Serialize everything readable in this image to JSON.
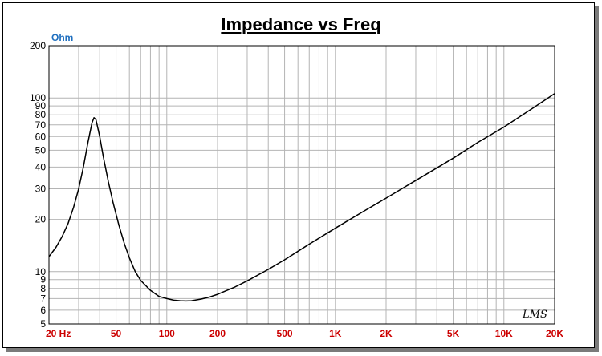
{
  "chart_data": {
    "type": "line",
    "title": "Impedance vs Freq",
    "ylabel": "Ohm",
    "xlabel": "",
    "xscale": "log",
    "yscale": "log",
    "xlim": [
      20,
      20000
    ],
    "ylim": [
      5,
      200
    ],
    "grid": true,
    "x_ticks": [
      {
        "value": 20,
        "label": "20  Hz"
      },
      {
        "value": 50,
        "label": "50"
      },
      {
        "value": 100,
        "label": "100"
      },
      {
        "value": 200,
        "label": "200"
      },
      {
        "value": 500,
        "label": "500"
      },
      {
        "value": 1000,
        "label": "1K"
      },
      {
        "value": 2000,
        "label": "2K"
      },
      {
        "value": 5000,
        "label": "5K"
      },
      {
        "value": 10000,
        "label": "10K"
      },
      {
        "value": 20000,
        "label": "20K"
      }
    ],
    "y_ticks": [
      {
        "value": 5,
        "label": "5"
      },
      {
        "value": 6,
        "label": "6"
      },
      {
        "value": 7,
        "label": "7"
      },
      {
        "value": 8,
        "label": "8"
      },
      {
        "value": 9,
        "label": "9"
      },
      {
        "value": 10,
        "label": "10"
      },
      {
        "value": 20,
        "label": "20"
      },
      {
        "value": 30,
        "label": "30"
      },
      {
        "value": 40,
        "label": "40"
      },
      {
        "value": 50,
        "label": "50"
      },
      {
        "value": 60,
        "label": "60"
      },
      {
        "value": 70,
        "label": "70"
      },
      {
        "value": 80,
        "label": "80"
      },
      {
        "value": 90,
        "label": "90"
      },
      {
        "value": 100,
        "label": "100"
      },
      {
        "value": 200,
        "label": "200"
      }
    ],
    "series": [
      {
        "color": "#000000",
        "x": [
          20,
          22,
          24,
          26,
          28,
          30,
          32,
          34,
          36,
          37,
          38,
          40,
          42,
          45,
          48,
          52,
          56,
          60,
          65,
          70,
          80,
          90,
          100,
          110,
          120,
          130,
          140,
          160,
          180,
          200,
          250,
          300,
          400,
          500,
          700,
          1000,
          1500,
          2000,
          3000,
          5000,
          7000,
          10000,
          15000,
          20000
        ],
        "y": [
          12.2,
          13.8,
          16.0,
          19.0,
          23.5,
          30.0,
          40.0,
          55.0,
          72.0,
          77.0,
          75.0,
          60.0,
          46.0,
          33.0,
          25.0,
          18.5,
          14.5,
          12.0,
          10.0,
          8.9,
          7.8,
          7.2,
          7.0,
          6.85,
          6.8,
          6.78,
          6.8,
          6.95,
          7.15,
          7.4,
          8.1,
          8.85,
          10.3,
          11.7,
          14.4,
          17.8,
          22.5,
          26.5,
          33.5,
          45.0,
          55.5,
          68.0,
          88.0,
          106.0
        ]
      }
    ]
  },
  "signature": "LMS",
  "colors": {
    "curve": "#000000",
    "grid": "#b4b4b4",
    "x_tick_labels": "#cc0000",
    "unit_label": "#1f6fbf"
  }
}
